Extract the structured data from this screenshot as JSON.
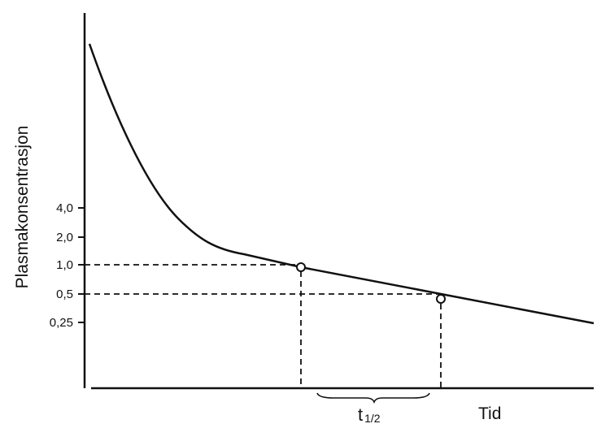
{
  "chart_data": {
    "type": "line",
    "ylabel": "Plasmakonsentrasjon",
    "xlabel": "Tid",
    "y_scale": "log",
    "y_ticks": [
      {
        "value": 4.0,
        "label": "4,0"
      },
      {
        "value": 2.0,
        "label": "2,0"
      },
      {
        "value": 1.0,
        "label": "1,0"
      },
      {
        "value": 0.5,
        "label": "0,5"
      },
      {
        "value": 0.25,
        "label": "0,25"
      }
    ],
    "markers": [
      {
        "name": "point-1",
        "y": 1.0
      },
      {
        "name": "point-2",
        "y": 0.5
      }
    ],
    "annotation": {
      "main": "t",
      "sub": "1/2"
    },
    "grid": false,
    "legend": "none"
  },
  "colors": {
    "ink": "#111111",
    "background": "#ffffff"
  }
}
